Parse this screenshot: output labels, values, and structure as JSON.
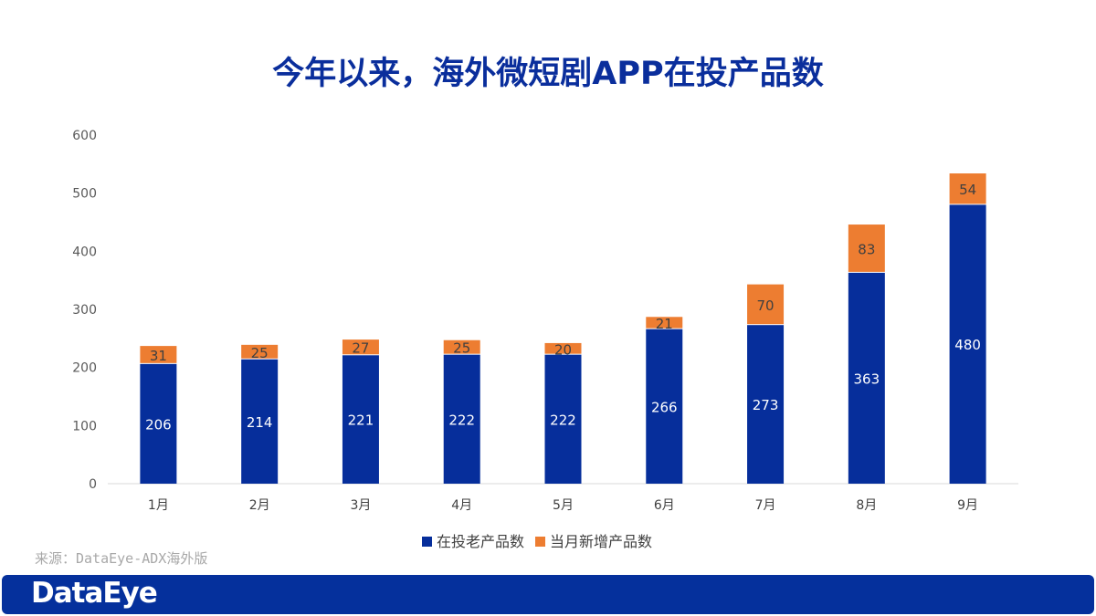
{
  "title": "今年以来，海外微短剧APP在投产品数",
  "source": "来源：DataEye-ADX海外版",
  "logo": "DataEye",
  "watermark": "DataEye",
  "colors": {
    "title": "#0a2e9c",
    "old": "#062e9b",
    "new": "#ed7d31",
    "footer": "#05309c"
  },
  "chart_data": {
    "type": "bar",
    "stacked": true,
    "categories": [
      "1月",
      "2月",
      "3月",
      "4月",
      "5月",
      "6月",
      "7月",
      "8月",
      "9月"
    ],
    "series": [
      {
        "name": "在投老产品数",
        "values": [
          206,
          214,
          221,
          222,
          222,
          266,
          273,
          363,
          480
        ]
      },
      {
        "name": "当月新增产品数",
        "values": [
          31,
          25,
          27,
          25,
          20,
          21,
          70,
          83,
          54
        ]
      }
    ],
    "ylim": [
      0,
      600
    ],
    "yticks": [
      0,
      100,
      200,
      300,
      400,
      500,
      600
    ],
    "grid": false,
    "legend": "bottom"
  }
}
